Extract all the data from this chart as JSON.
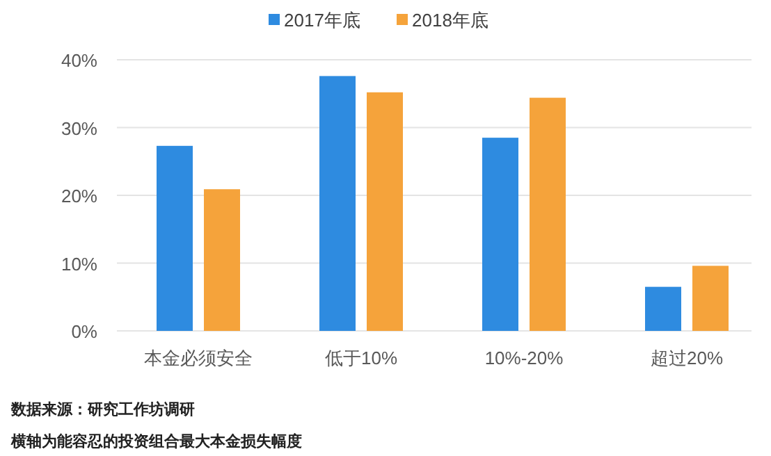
{
  "chart_data": {
    "type": "bar",
    "categories": [
      "本金必须安全",
      "低于10%",
      "10%-20%",
      "超过20%"
    ],
    "series": [
      {
        "name": "2017年底",
        "color": "#2e8be0",
        "values": [
          27.3,
          37.6,
          28.5,
          6.5
        ]
      },
      {
        "name": "2018年底",
        "color": "#f5a33b",
        "values": [
          20.9,
          35.2,
          34.4,
          9.6
        ]
      }
    ],
    "ylim": [
      0,
      40
    ],
    "yticks": [
      {
        "value": 0,
        "label": "0%"
      },
      {
        "value": 10,
        "label": "10%"
      },
      {
        "value": 20,
        "label": "20%"
      },
      {
        "value": 30,
        "label": "30%"
      },
      {
        "value": 40,
        "label": "40%"
      }
    ],
    "grid": "y",
    "legend": "top",
    "annotations": [
      "数据来源：研究工作坊调研",
      "横轴为能容忍的投资组合最大本金损失幅度"
    ]
  }
}
